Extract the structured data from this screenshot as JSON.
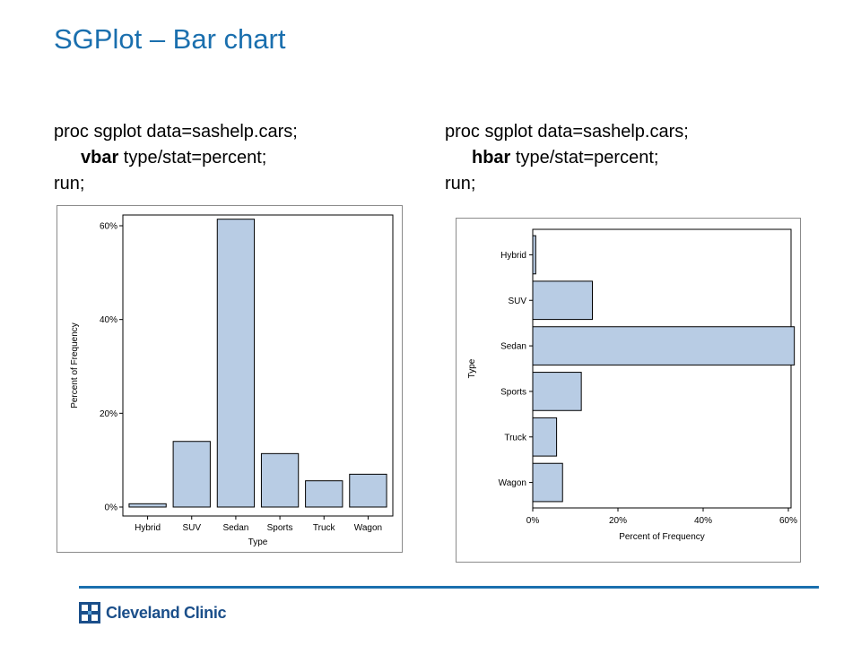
{
  "slide": {
    "title": "SGPlot – Bar chart",
    "code_left": {
      "line1": "proc sgplot data=sashelp.cars;",
      "line2_keyword": "vbar",
      "line2_rest": " type/stat=percent;",
      "line3": "run;"
    },
    "code_right": {
      "line1": "proc sgplot data=sashelp.cars;",
      "line2_keyword": "hbar",
      "line2_rest": " type/stat=percent;",
      "line3": "run;"
    },
    "footer": {
      "logo_text": "Cleveland Clinic",
      "accent_color": "#1a6fae",
      "logo_color": "#1b4f8a"
    }
  },
  "chart_data": [
    {
      "type": "bar",
      "orientation": "vertical",
      "categories": [
        "Hybrid",
        "SUV",
        "Sedan",
        "Sports",
        "Truck",
        "Wagon"
      ],
      "values": [
        0.7,
        14.0,
        61.4,
        11.4,
        5.6,
        7.0
      ],
      "xlabel": "Type",
      "ylabel": "Percent of Frequency",
      "ylim": [
        0,
        60
      ],
      "ticks": [
        0,
        20,
        40,
        60
      ],
      "tick_labels": [
        "0%",
        "20%",
        "40%",
        "60%"
      ],
      "bar_color": "#b8cce4",
      "grid": false
    },
    {
      "type": "bar",
      "orientation": "horizontal",
      "categories": [
        "Hybrid",
        "SUV",
        "Sedan",
        "Sports",
        "Truck",
        "Wagon"
      ],
      "values": [
        0.7,
        14.0,
        61.4,
        11.4,
        5.6,
        7.0
      ],
      "xlabel": "Percent of Frequency",
      "ylabel": "Type",
      "xlim": [
        0,
        60
      ],
      "ticks": [
        0,
        20,
        40,
        60
      ],
      "tick_labels": [
        "0%",
        "20%",
        "40%",
        "60%"
      ],
      "bar_color": "#b8cce4",
      "grid": false
    }
  ]
}
